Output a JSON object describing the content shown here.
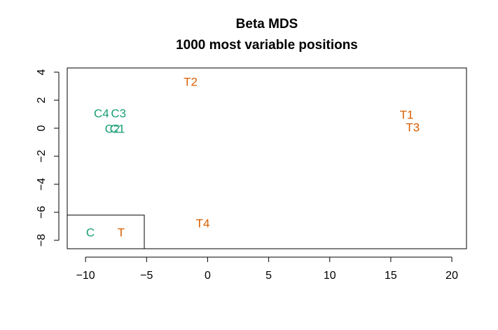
{
  "chart_data": {
    "type": "scatter",
    "title": "Beta MDS",
    "subtitle": "1000 most variable positions",
    "xlabel": "",
    "ylabel": "",
    "xlim": [
      -11.5,
      21.2
    ],
    "ylim": [
      -8.6,
      4.3
    ],
    "xticks": [
      -10,
      -5,
      0,
      5,
      10,
      15,
      20
    ],
    "yticks": [
      -8,
      -6,
      -4,
      -2,
      0,
      2,
      4
    ],
    "grid": false,
    "colors": {
      "C": "#1b9e77",
      "T": "#d95f02"
    },
    "points": [
      {
        "label": "C4",
        "x": -8.7,
        "y": 1.05,
        "group": "C"
      },
      {
        "label": "C3",
        "x": -7.3,
        "y": 1.05,
        "group": "C"
      },
      {
        "label": "C2",
        "x": -7.8,
        "y": -0.05,
        "group": "C"
      },
      {
        "label": "C1",
        "x": -7.4,
        "y": -0.05,
        "group": "C"
      },
      {
        "label": "T2",
        "x": -1.4,
        "y": 3.3,
        "group": "T"
      },
      {
        "label": "T1",
        "x": 16.3,
        "y": 0.95,
        "group": "T"
      },
      {
        "label": "T3",
        "x": 16.8,
        "y": 0.05,
        "group": "T"
      },
      {
        "label": "T4",
        "x": -0.4,
        "y": -6.8,
        "group": "T"
      }
    ],
    "legend": {
      "position": "bottom-left",
      "entries": [
        {
          "label": "C",
          "group": "C"
        },
        {
          "label": "T",
          "group": "T"
        }
      ]
    }
  }
}
